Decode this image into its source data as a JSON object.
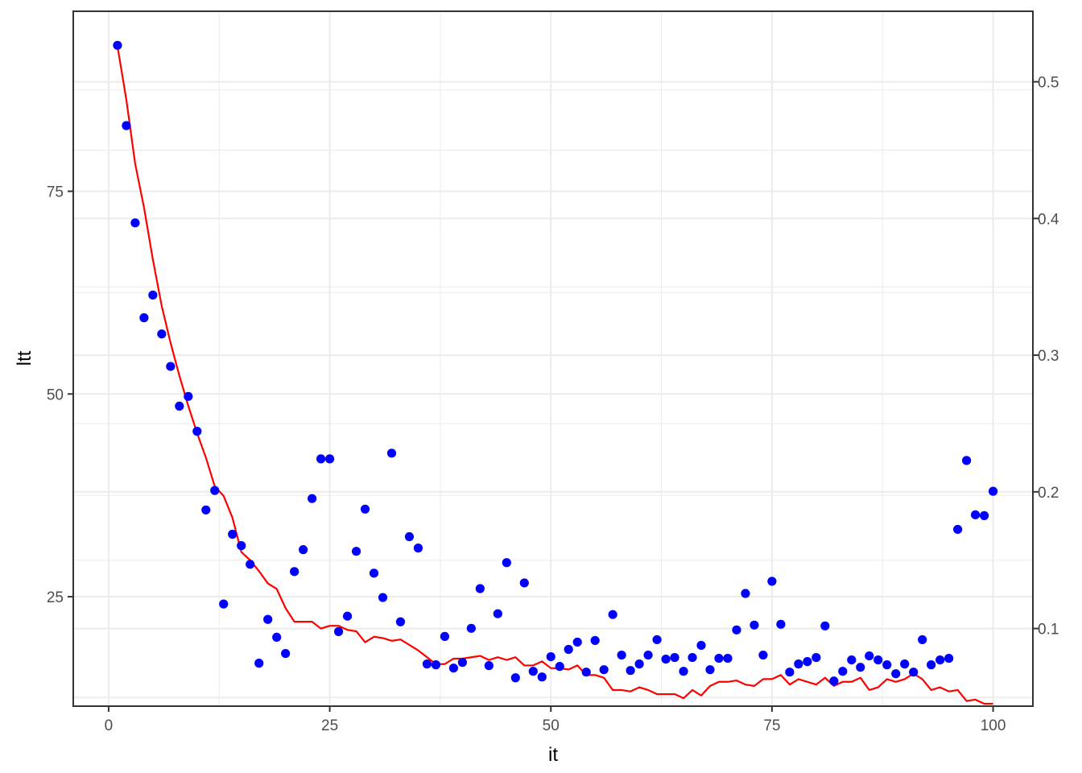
{
  "chart_data": {
    "type": "scatter",
    "title": "",
    "xlabel": "it",
    "ylabel": "ltt",
    "xlim": [
      -4,
      104.5
    ],
    "ylim": [
      11.5,
      97.2
    ],
    "y2lim": [
      0.0432,
      0.5516
    ],
    "x_ticks": [
      0,
      25,
      50,
      75,
      100
    ],
    "y_ticks": [
      25,
      50,
      75
    ],
    "y2_ticks": [
      0.1,
      0.2,
      0.3,
      0.4,
      0.5
    ],
    "x_tick_labels": [
      "0",
      "25",
      "50",
      "75",
      "100"
    ],
    "y_tick_labels": [
      "25",
      "50",
      "75"
    ],
    "y2_tick_labels": [
      "0.1",
      "0.2",
      "0.3",
      "0.4",
      "0.5"
    ],
    "grid": true,
    "legend": "none",
    "colors": {
      "points": "#0000ff",
      "line": "#ff0000",
      "grid": "#ebebeb",
      "border": "#333333"
    },
    "series": [
      {
        "kind": "points",
        "axis": "left",
        "x": [
          1,
          2,
          3,
          4,
          5,
          6,
          7,
          8,
          9,
          10,
          11,
          12,
          13,
          14,
          15,
          16,
          17,
          18,
          19,
          20,
          21,
          22,
          23,
          24,
          25,
          26,
          27,
          28,
          29,
          30,
          31,
          32,
          33,
          34,
          35,
          36,
          37,
          38,
          39,
          40,
          41,
          42,
          43,
          44,
          45,
          46,
          47,
          48,
          49,
          50,
          51,
          52,
          53,
          54,
          55,
          56,
          57,
          58,
          59,
          60,
          61,
          62,
          63,
          64,
          65,
          66,
          67,
          68,
          69,
          70,
          71,
          72,
          73,
          74,
          75,
          76,
          77,
          78,
          79,
          80,
          81,
          82,
          83,
          84,
          85,
          86,
          87,
          88,
          89,
          90,
          91,
          92,
          93,
          94,
          95,
          96,
          97,
          98,
          99,
          100
        ],
        "y": [
          93.0,
          83.1,
          71.1,
          59.4,
          62.2,
          57.4,
          53.4,
          48.5,
          49.7,
          45.4,
          35.7,
          38.1,
          24.1,
          32.7,
          31.3,
          29.0,
          16.8,
          22.2,
          20.0,
          18.0,
          28.1,
          30.8,
          37.1,
          42.0,
          42.0,
          20.7,
          22.6,
          30.6,
          35.8,
          27.9,
          24.9,
          42.7,
          21.9,
          32.4,
          31.0,
          16.7,
          16.6,
          20.1,
          16.2,
          16.9,
          21.1,
          26.0,
          16.5,
          22.9,
          29.2,
          15.0,
          26.7,
          15.8,
          15.1,
          17.6,
          16.4,
          18.5,
          19.4,
          15.7,
          19.6,
          16.0,
          22.8,
          17.8,
          15.9,
          16.7,
          17.8,
          19.7,
          17.3,
          17.5,
          15.8,
          17.5,
          19.0,
          16.0,
          17.4,
          17.4,
          20.9,
          25.4,
          21.5,
          17.8,
          26.9,
          21.6,
          15.7,
          16.7,
          17.0,
          17.5,
          21.4,
          14.6,
          15.8,
          17.2,
          16.3,
          17.7,
          17.2,
          16.6,
          15.5,
          16.7,
          15.7,
          19.7,
          16.6,
          17.2,
          17.4,
          33.3,
          41.8,
          35.1,
          35.0,
          38.0
        ]
      },
      {
        "kind": "line",
        "axis": "right",
        "x": [
          1,
          2,
          3,
          4,
          5,
          6,
          7,
          8,
          9,
          10,
          11,
          12,
          13,
          14,
          15,
          16,
          17,
          18,
          19,
          20,
          21,
          22,
          23,
          24,
          25,
          26,
          27,
          28,
          29,
          30,
          31,
          32,
          33,
          34,
          35,
          36,
          37,
          38,
          39,
          40,
          41,
          42,
          43,
          44,
          45,
          46,
          47,
          48,
          49,
          50,
          51,
          52,
          53,
          54,
          55,
          56,
          57,
          58,
          59,
          60,
          61,
          62,
          63,
          64,
          65,
          66,
          67,
          68,
          69,
          70,
          71,
          72,
          73,
          74,
          75,
          76,
          77,
          78,
          79,
          80,
          81,
          82,
          83,
          84,
          85,
          86,
          87,
          88,
          89,
          90,
          91,
          92,
          93,
          94,
          95,
          96,
          97,
          98,
          99,
          100
        ],
        "y": [
          0.526,
          0.487,
          0.44,
          0.408,
          0.37,
          0.336,
          0.309,
          0.285,
          0.263,
          0.243,
          0.225,
          0.204,
          0.197,
          0.181,
          0.156,
          0.15,
          0.142,
          0.133,
          0.129,
          0.115,
          0.105,
          0.105,
          0.105,
          0.1,
          0.102,
          0.102,
          0.099,
          0.098,
          0.09,
          0.094,
          0.093,
          0.091,
          0.092,
          0.088,
          0.084,
          0.079,
          0.074,
          0.074,
          0.078,
          0.078,
          0.079,
          0.08,
          0.077,
          0.079,
          0.077,
          0.079,
          0.073,
          0.073,
          0.076,
          0.071,
          0.071,
          0.07,
          0.073,
          0.066,
          0.066,
          0.064,
          0.055,
          0.055,
          0.054,
          0.057,
          0.055,
          0.052,
          0.052,
          0.052,
          0.049,
          0.055,
          0.051,
          0.058,
          0.061,
          0.061,
          0.062,
          0.059,
          0.058,
          0.063,
          0.063,
          0.066,
          0.059,
          0.063,
          0.061,
          0.059,
          0.064,
          0.058,
          0.061,
          0.061,
          0.064,
          0.055,
          0.057,
          0.063,
          0.061,
          0.063,
          0.067,
          0.063,
          0.055,
          0.057,
          0.054,
          0.055,
          0.047,
          0.048,
          0.045,
          0.045
        ]
      }
    ]
  }
}
